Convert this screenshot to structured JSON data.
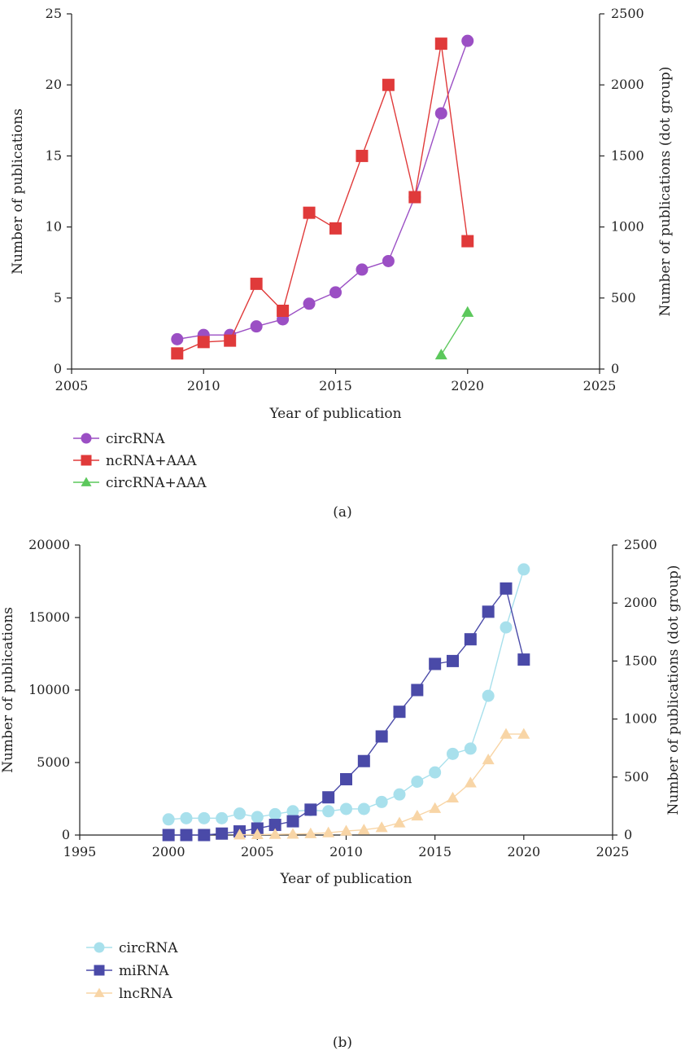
{
  "chart_data": [
    {
      "panel_label": "(a)",
      "type": "line",
      "xlabel": "Year of publication",
      "ylabel": "Number of publications",
      "y2label": "Number of publications (dot group)",
      "xlim": [
        2005,
        2025
      ],
      "ylim": [
        0,
        25
      ],
      "y2lim": [
        0,
        2500
      ],
      "xticks": [
        "2005",
        "2010",
        "2015",
        "2020",
        "2025"
      ],
      "yticks": [
        "0",
        "5",
        "10",
        "15",
        "20",
        "25"
      ],
      "y2ticks": [
        "0",
        "500",
        "1000",
        "1500",
        "2000",
        "2500"
      ],
      "grid": false,
      "legend_position": "below",
      "series": [
        {
          "name": "circRNA",
          "axis": "left",
          "marker": "circle",
          "color": "#9b4fc4",
          "x": [
            2009,
            2010,
            2011,
            2012,
            2013,
            2014,
            2015,
            2016,
            2017,
            2018,
            2019,
            2020
          ],
          "y": [
            2.1,
            2.4,
            2.4,
            3.0,
            3.5,
            4.6,
            5.4,
            7.0,
            7.6,
            12.1,
            18.0,
            23.1
          ]
        },
        {
          "name": "ncRNA+AAA",
          "axis": "left",
          "marker": "square",
          "color": "#e03a3a",
          "x": [
            2009,
            2010,
            2011,
            2012,
            2013,
            2014,
            2015,
            2016,
            2017,
            2018,
            2019,
            2020
          ],
          "y": [
            1.1,
            1.9,
            2.0,
            6.0,
            4.1,
            11.0,
            9.9,
            15.0,
            20.0,
            12.1,
            22.9,
            9.0
          ]
        },
        {
          "name": "circRNA+AAA",
          "axis": "right",
          "marker": "triangle",
          "color": "#5cc85c",
          "x": [
            2019,
            2020
          ],
          "y": [
            100,
            400
          ]
        }
      ]
    },
    {
      "panel_label": "(b)",
      "type": "line",
      "xlabel": "Year of publication",
      "ylabel": "Number of publications",
      "y2label": "Number of publications (dot group)",
      "xlim": [
        1995,
        2025
      ],
      "ylim": [
        0,
        20000
      ],
      "y2lim": [
        0,
        2500
      ],
      "xticks": [
        "1995",
        "2000",
        "2005",
        "2010",
        "2015",
        "2020",
        "2025"
      ],
      "yticks": [
        "0",
        "5000",
        "10000",
        "15000",
        "20000"
      ],
      "y2ticks": [
        "0",
        "500",
        "1000",
        "1500",
        "2000",
        "2500"
      ],
      "grid": false,
      "legend_position": "below",
      "series": [
        {
          "name": "circRNA",
          "axis": "right",
          "marker": "circle",
          "color": "#a8e0ec",
          "x": [
            2000,
            2001,
            2002,
            2003,
            2004,
            2005,
            2006,
            2007,
            2008,
            2009,
            2010,
            2011,
            2012,
            2013,
            2014,
            2015,
            2016,
            2017,
            2018,
            2019,
            2020
          ],
          "y": [
            135,
            145,
            145,
            145,
            185,
            155,
            180,
            205,
            215,
            205,
            225,
            225,
            285,
            350,
            460,
            540,
            700,
            745,
            1200,
            1790,
            2290
          ]
        },
        {
          "name": "miRNA",
          "axis": "left",
          "marker": "square",
          "color": "#4a4aa8",
          "x": [
            2000,
            2001,
            2002,
            2003,
            2004,
            2005,
            2006,
            2007,
            2008,
            2009,
            2010,
            2011,
            2012,
            2013,
            2014,
            2015,
            2016,
            2017,
            2018,
            2019,
            2020
          ],
          "y": [
            0,
            0,
            0,
            100,
            250,
            450,
            700,
            950,
            1750,
            2600,
            3850,
            5100,
            6800,
            8500,
            10000,
            11800,
            12000,
            13500,
            15400,
            17000,
            12100
          ]
        },
        {
          "name": "lncRNA",
          "axis": "right",
          "marker": "triangle",
          "color": "#f8d5a6",
          "x": [
            2004,
            2005,
            2006,
            2007,
            2008,
            2009,
            2010,
            2011,
            2012,
            2013,
            2014,
            2015,
            2016,
            2017,
            2018,
            2019,
            2020
          ],
          "y": [
            2,
            4,
            6,
            8,
            12,
            20,
            35,
            45,
            65,
            105,
            165,
            230,
            320,
            450,
            650,
            870,
            870
          ]
        }
      ]
    }
  ],
  "legends": {
    "a": [
      "circRNA",
      "ncRNA+AAA",
      "circRNA+AAA"
    ],
    "b": [
      "circRNA",
      "miRNA",
      "lncRNA"
    ]
  }
}
